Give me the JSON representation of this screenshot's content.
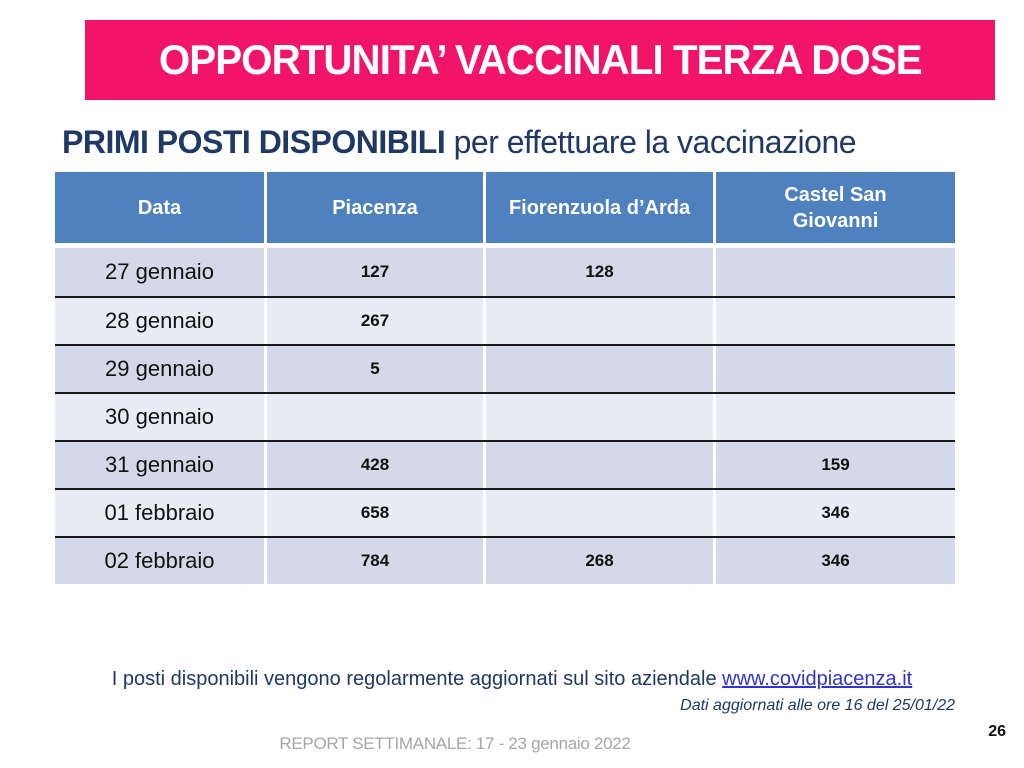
{
  "banner": {
    "title": "OPPORTUNITA’ VACCINALI TERZA DOSE"
  },
  "heading": {
    "bold": "PRIMI POSTI DISPONIBILI",
    "regular": " per effettuare la vaccinazione"
  },
  "table": {
    "headers": [
      "Data",
      "Piacenza",
      "Fiorenzuola d’Arda",
      "Castel San Giovanni"
    ],
    "rows": [
      {
        "cells": [
          "27 gennaio",
          "127",
          "128",
          ""
        ]
      },
      {
        "cells": [
          "28 gennaio",
          "267",
          "",
          ""
        ]
      },
      {
        "cells": [
          "29 gennaio",
          "5",
          "",
          ""
        ]
      },
      {
        "cells": [
          "30 gennaio",
          "",
          "",
          ""
        ]
      },
      {
        "cells": [
          "31 gennaio",
          "428",
          "",
          "159"
        ]
      },
      {
        "cells": [
          "01 febbraio",
          "658",
          "",
          "346"
        ]
      },
      {
        "cells": [
          "02 febbraio",
          "784",
          "268",
          "346"
        ]
      }
    ]
  },
  "footer": {
    "note_text": "I posti disponibili vengono regolarmente aggiornati sul sito aziendale ",
    "link_text": "www.covidpiacenza.it",
    "updated_text": "Dati aggiornati alle ore 16 del 25/01/22",
    "report_text": "REPORT SETTIMANALE: 17 - 23 gennaio 2022",
    "page_number": "26"
  },
  "colors": {
    "banner_pink": "#F2136B",
    "header_blue": "#4E81BD",
    "navy_text": "#1F3864",
    "link_blue": "#3333CC",
    "row_dark": "#D3D9E8",
    "row_light": "#E9ECF5",
    "footer_gray": "#A6A6A6"
  }
}
